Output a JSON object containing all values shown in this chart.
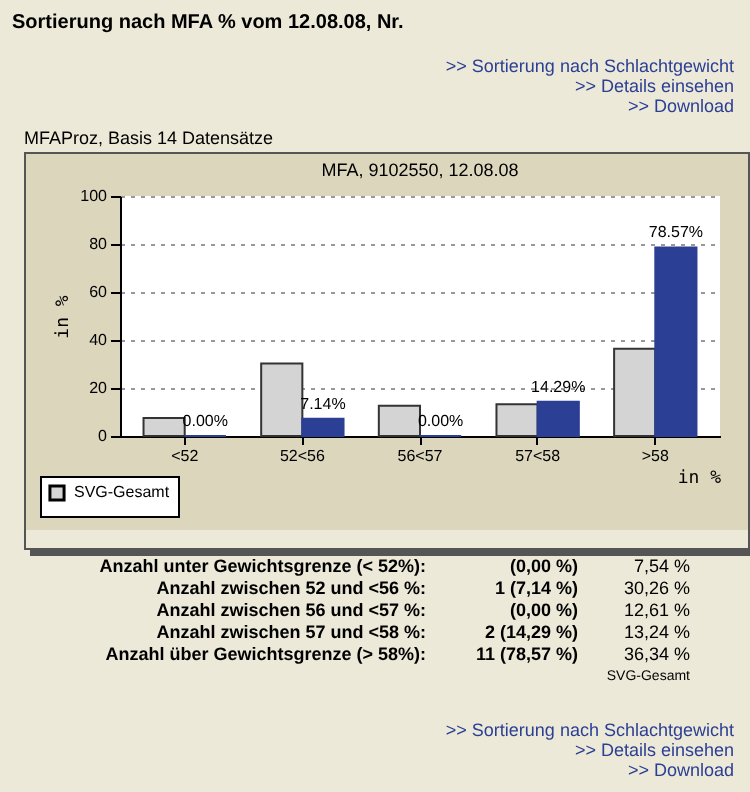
{
  "chart_data": {
    "type": "bar",
    "title": "Sortierung nach MFA % vom 12.08.08, Nr.",
    "subtitle": "MFA, 9102550, 12.08.08",
    "ylabel": "in %",
    "xlabel": "in %",
    "categories": [
      "<52",
      "52<56",
      "56<57",
      "57<58",
      ">58"
    ],
    "series": [
      {
        "name": "SVG-Gesamt",
        "color": "#d4d4d4",
        "values": [
          7.54,
          30.26,
          12.61,
          13.24,
          36.34
        ]
      },
      {
        "color": "#2b3f94",
        "values": [
          0,
          7.14,
          0,
          14.29,
          78.57
        ],
        "value_labels": [
          "0.00%",
          "7.14%",
          "0.00%",
          "14.29%",
          "78.57%"
        ]
      }
    ],
    "ylim": [
      0,
      100
    ],
    "yticks": [
      0,
      20,
      40,
      60,
      80,
      100
    ],
    "grid": "y",
    "legend": "bottom left",
    "annotations": [
      ">> Sortierung nach Schlachtgewicht",
      ">> Details einsehen",
      ">> Download",
      "MFAProz, Basis 14 Datensätze",
      "Anzahl unter Gewichtsgrenze  (< 52%):",
      "(0,00 %)",
      "7,54 %",
      "Anzahl zwischen 52 und <56 %:",
      "1 (7,14 %)",
      "30,26 %",
      "Anzahl zwischen 56 und <57 %:",
      "(0,00 %)",
      "12,61 %",
      "Anzahl zwischen 57 und <58 %:",
      "2 (14,29 %)",
      "13,24 %",
      "Anzahl über Gewichtsgrenze (> 58%):",
      "11 (78,57 %)",
      "36,34 %",
      "SVG-Gesamt",
      ">> Sortierung nach Schlachtgewicht",
      ">> Details einsehen",
      ">> Download"
    ]
  }
}
